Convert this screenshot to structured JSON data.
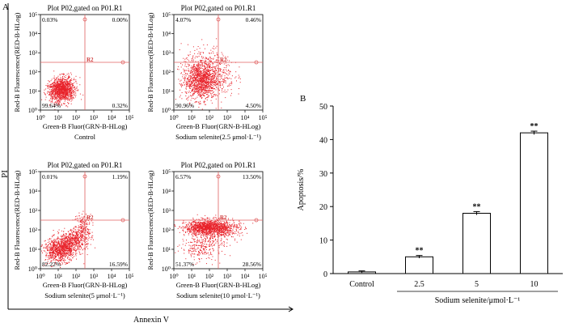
{
  "panel_labels": {
    "a": "A",
    "b": "B"
  },
  "figure_a": {
    "y_outer_label": "PI",
    "x_outer_label": "Annexin V",
    "gate_label": "R2",
    "plots": [
      {
        "title": "Plot P02,gated on P01.R1",
        "caption": "Control",
        "xlabel": "Green-B Fluor(GRN-B-HLog)",
        "ylabel": "Red-B Fluorescence(RED-B-HLog)",
        "quadrants": {
          "ul": "0.03%",
          "ur": "0.00%",
          "ll": "99.64%",
          "lr": "0.32%"
        }
      },
      {
        "title": "Plot P02,gated on P01.R1",
        "caption": "Sodium selenite(2.5 μmol·L⁻¹)",
        "xlabel": "Green-B Fluor(GRN-B-HLog)",
        "ylabel": "Red-B Fluorescence(RED-B-HLog)",
        "quadrants": {
          "ul": "4.07%",
          "ur": "0.46%",
          "ll": "90.96%",
          "lr": "4.50%"
        }
      },
      {
        "title": "Plot P02,gated on P01.R1",
        "caption": "Sodium selenite(5 μmol·L⁻¹)",
        "xlabel": "Green-B Fluor(GRN-B-HLog)",
        "ylabel": "Red-B Fluorescence(RED-B-HLog)",
        "quadrants": {
          "ul": "0.01%",
          "ur": "1.19%",
          "ll": "82.22%",
          "lr": "16.59%"
        }
      },
      {
        "title": "Plot P02,gated on P01.R1",
        "caption": "Sodium selenite(10 μmol·L⁻¹)",
        "xlabel": "Green-B Fluor(GRN-B-HLog)",
        "ylabel": "Red-B Fluorescence(RED-B-HLog)",
        "quadrants": {
          "ul": "6.57%",
          "ur": "13.50%",
          "ll": "51.37%",
          "lr": "28.56%"
        }
      }
    ],
    "axis_ticks": [
      "10⁰",
      "10¹",
      "10²",
      "10³",
      "10⁴",
      "10⁵"
    ],
    "dot_color": "#e8222a",
    "gate_color": "#e06060"
  },
  "chart_data": {
    "type": "bar",
    "categories": [
      "Control",
      "2.5",
      "5",
      "10"
    ],
    "values": [
      0.5,
      5,
      18,
      42
    ],
    "errors": [
      0.3,
      0.4,
      0.5,
      0.5
    ],
    "annotations": [
      "",
      "**",
      "**",
      "**"
    ],
    "title": "",
    "xlabel": "Sodium selenite/μmol·L⁻¹",
    "ylabel": "Apoptosis/%",
    "ylim": [
      0,
      50
    ],
    "yticks": [
      "0",
      "10",
      "20",
      "30",
      "40",
      "50"
    ]
  }
}
